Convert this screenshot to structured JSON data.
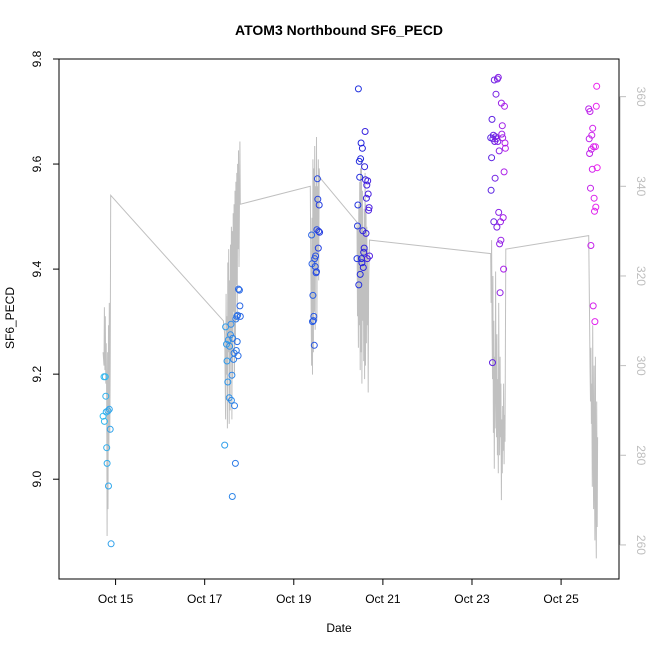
{
  "chart_data": {
    "type": "scatter",
    "title": "ATOM3 Northbound SF6_PECD",
    "xlabel": "Date",
    "ylabel": "SF6_PECD",
    "x_ticks": [
      {
        "day": 15,
        "label": "Oct 15"
      },
      {
        "day": 17,
        "label": "Oct 17"
      },
      {
        "day": 19,
        "label": "Oct 19"
      },
      {
        "day": 21,
        "label": "Oct 21"
      },
      {
        "day": 23,
        "label": "Oct 23"
      },
      {
        "day": 25,
        "label": "Oct 25"
      }
    ],
    "xlim": [
      13.73,
      26.3
    ],
    "ylim": [
      8.81,
      9.8
    ],
    "y_ticks": [
      "9.0",
      "9.2",
      "9.4",
      "9.6",
      "9.8"
    ],
    "y2lim": [
      252.4,
      368.4
    ],
    "y2_ticks": [
      "260",
      "280",
      "300",
      "320",
      "340",
      "360"
    ],
    "y2_color": "#BEBEBE",
    "line_color": "#C0C0C0",
    "point_color_start": "#33BBEE",
    "point_color_mid": "#2222DD",
    "point_color_end": "#EE22EE",
    "points": [
      [
        14.72,
        9.12
      ],
      [
        14.74,
        9.195
      ],
      [
        14.75,
        9.11
      ],
      [
        14.77,
        9.195
      ],
      [
        14.78,
        9.158
      ],
      [
        14.79,
        9.128
      ],
      [
        14.8,
        9.06
      ],
      [
        14.81,
        9.03
      ],
      [
        14.83,
        9.13
      ],
      [
        14.84,
        8.987
      ],
      [
        14.86,
        9.133
      ],
      [
        14.88,
        9.095
      ],
      [
        14.9,
        8.877
      ],
      [
        17.45,
        9.065
      ],
      [
        17.47,
        9.29
      ],
      [
        17.49,
        9.257
      ],
      [
        17.5,
        9.225
      ],
      [
        17.52,
        9.185
      ],
      [
        17.53,
        9.265
      ],
      [
        17.55,
        9.155
      ],
      [
        17.56,
        9.253
      ],
      [
        17.58,
        9.275
      ],
      [
        17.59,
        9.295
      ],
      [
        17.6,
        9.15
      ],
      [
        17.61,
        9.198
      ],
      [
        17.62,
        8.967
      ],
      [
        17.63,
        9.268
      ],
      [
        17.65,
        9.228
      ],
      [
        17.66,
        9.24
      ],
      [
        17.67,
        9.14
      ],
      [
        17.69,
        9.03
      ],
      [
        17.7,
        9.305
      ],
      [
        17.71,
        9.245
      ],
      [
        17.72,
        9.31
      ],
      [
        17.73,
        9.262
      ],
      [
        17.74,
        9.312
      ],
      [
        17.75,
        9.235
      ],
      [
        17.76,
        9.362
      ],
      [
        17.78,
        9.36
      ],
      [
        17.79,
        9.33
      ],
      [
        17.8,
        9.31
      ],
      [
        19.4,
        9.465
      ],
      [
        19.41,
        9.41
      ],
      [
        19.42,
        9.3
      ],
      [
        19.43,
        9.35
      ],
      [
        19.44,
        9.302
      ],
      [
        19.45,
        9.31
      ],
      [
        19.46,
        9.255
      ],
      [
        19.47,
        9.42
      ],
      [
        19.48,
        9.405
      ],
      [
        19.49,
        9.425
      ],
      [
        19.5,
        9.393
      ],
      [
        19.51,
        9.395
      ],
      [
        19.52,
        9.475
      ],
      [
        19.53,
        9.572
      ],
      [
        19.54,
        9.533
      ],
      [
        19.55,
        9.44
      ],
      [
        19.56,
        9.472
      ],
      [
        19.57,
        9.522
      ],
      [
        19.58,
        9.47
      ],
      [
        20.42,
        9.42
      ],
      [
        20.43,
        9.482
      ],
      [
        20.44,
        9.522
      ],
      [
        20.45,
        9.743
      ],
      [
        20.46,
        9.37
      ],
      [
        20.47,
        9.605
      ],
      [
        20.48,
        9.575
      ],
      [
        20.49,
        9.39
      ],
      [
        20.5,
        9.61
      ],
      [
        20.51,
        9.64
      ],
      [
        20.52,
        9.42
      ],
      [
        20.53,
        9.412
      ],
      [
        20.54,
        9.63
      ],
      [
        20.55,
        9.473
      ],
      [
        20.56,
        9.403
      ],
      [
        20.57,
        9.432
      ],
      [
        20.58,
        9.44
      ],
      [
        20.59,
        9.595
      ],
      [
        20.6,
        9.662
      ],
      [
        20.61,
        9.57
      ],
      [
        20.62,
        9.468
      ],
      [
        20.63,
        9.535
      ],
      [
        20.64,
        9.56
      ],
      [
        20.65,
        9.42
      ],
      [
        20.66,
        9.568
      ],
      [
        20.67,
        9.543
      ],
      [
        20.68,
        9.512
      ],
      [
        20.69,
        9.517
      ],
      [
        20.7,
        9.425
      ],
      [
        23.42,
        9.65
      ],
      [
        23.43,
        9.55
      ],
      [
        23.44,
        9.612
      ],
      [
        23.45,
        9.685
      ],
      [
        23.46,
        9.222
      ],
      [
        23.47,
        9.648
      ],
      [
        23.48,
        9.655
      ],
      [
        23.49,
        9.49
      ],
      [
        23.5,
        9.76
      ],
      [
        23.51,
        9.643
      ],
      [
        23.52,
        9.573
      ],
      [
        23.53,
        9.652
      ],
      [
        23.54,
        9.733
      ],
      [
        23.55,
        9.648
      ],
      [
        23.56,
        9.48
      ],
      [
        23.57,
        9.762
      ],
      [
        23.58,
        9.643
      ],
      [
        23.59,
        9.765
      ],
      [
        23.6,
        9.508
      ],
      [
        23.61,
        9.625
      ],
      [
        23.62,
        9.448
      ],
      [
        23.63,
        9.355
      ],
      [
        23.64,
        9.49
      ],
      [
        23.65,
        9.455
      ],
      [
        23.66,
        9.716
      ],
      [
        23.67,
        9.657
      ],
      [
        23.68,
        9.673
      ],
      [
        23.69,
        9.65
      ],
      [
        23.7,
        9.498
      ],
      [
        23.71,
        9.4
      ],
      [
        23.72,
        9.585
      ],
      [
        23.73,
        9.71
      ],
      [
        23.74,
        9.64
      ],
      [
        23.75,
        9.63
      ],
      [
        25.62,
        9.705
      ],
      [
        25.63,
        9.648
      ],
      [
        25.64,
        9.62
      ],
      [
        25.65,
        9.7
      ],
      [
        25.66,
        9.554
      ],
      [
        25.67,
        9.445
      ],
      [
        25.68,
        9.628
      ],
      [
        25.69,
        9.655
      ],
      [
        25.7,
        9.59
      ],
      [
        25.71,
        9.668
      ],
      [
        25.72,
        9.33
      ],
      [
        25.73,
        9.633
      ],
      [
        25.74,
        9.535
      ],
      [
        25.75,
        9.51
      ],
      [
        25.76,
        9.3
      ],
      [
        25.77,
        9.633
      ],
      [
        25.78,
        9.518
      ],
      [
        25.79,
        9.71
      ],
      [
        25.8,
        9.748
      ],
      [
        25.81,
        9.593
      ]
    ],
    "line": [
      [
        14.72,
        303
      ],
      [
        14.74,
        300
      ],
      [
        14.75,
        313
      ],
      [
        14.76,
        299
      ],
      [
        14.77,
        311
      ],
      [
        14.78,
        296
      ],
      [
        14.79,
        305
      ],
      [
        14.8,
        292
      ],
      [
        14.81,
        262
      ],
      [
        14.82,
        303
      ],
      [
        14.83,
        268
      ],
      [
        14.84,
        309
      ],
      [
        14.85,
        281
      ],
      [
        14.86,
        314
      ],
      [
        14.87,
        285
      ],
      [
        14.88,
        300
      ],
      [
        14.89,
        338
      ],
      [
        17.42,
        310
      ],
      [
        17.45,
        307
      ],
      [
        17.47,
        288
      ],
      [
        17.48,
        316
      ],
      [
        17.49,
        298
      ],
      [
        17.5,
        311
      ],
      [
        17.51,
        286
      ],
      [
        17.52,
        323
      ],
      [
        17.53,
        303
      ],
      [
        17.54,
        326
      ],
      [
        17.55,
        287
      ],
      [
        17.56,
        319
      ],
      [
        17.57,
        290
      ],
      [
        17.58,
        327
      ],
      [
        17.59,
        302
      ],
      [
        17.6,
        331
      ],
      [
        17.61,
        288
      ],
      [
        17.62,
        330
      ],
      [
        17.63,
        297
      ],
      [
        17.64,
        334
      ],
      [
        17.65,
        312
      ],
      [
        17.66,
        336
      ],
      [
        17.67,
        298
      ],
      [
        17.68,
        339
      ],
      [
        17.69,
        305
      ],
      [
        17.7,
        341
      ],
      [
        17.71,
        318
      ],
      [
        17.72,
        343
      ],
      [
        17.73,
        310
      ],
      [
        17.74,
        345
      ],
      [
        17.75,
        326
      ],
      [
        17.76,
        348
      ],
      [
        17.77,
        322
      ],
      [
        17.79,
        350
      ],
      [
        17.8,
        336
      ],
      [
        19.37,
        340
      ],
      [
        19.39,
        310
      ],
      [
        19.4,
        300
      ],
      [
        19.41,
        333
      ],
      [
        19.42,
        298
      ],
      [
        19.43,
        346
      ],
      [
        19.44,
        303
      ],
      [
        19.45,
        344
      ],
      [
        19.46,
        312
      ],
      [
        19.47,
        349
      ],
      [
        19.48,
        308
      ],
      [
        19.49,
        340
      ],
      [
        19.5,
        320
      ],
      [
        19.51,
        351
      ],
      [
        19.52,
        310
      ],
      [
        19.53,
        340
      ],
      [
        19.54,
        325
      ],
      [
        19.55,
        346
      ],
      [
        19.56,
        319
      ],
      [
        19.57,
        344
      ],
      [
        19.58,
        342
      ],
      [
        20.42,
        332
      ],
      [
        20.43,
        311
      ],
      [
        20.44,
        331
      ],
      [
        20.45,
        304
      ],
      [
        20.46,
        336
      ],
      [
        20.47,
        309
      ],
      [
        20.48,
        341
      ],
      [
        20.49,
        299
      ],
      [
        20.5,
        344
      ],
      [
        20.51,
        303
      ],
      [
        20.52,
        346
      ],
      [
        20.53,
        296
      ],
      [
        20.54,
        339
      ],
      [
        20.55,
        310
      ],
      [
        20.56,
        330
      ],
      [
        20.57,
        301
      ],
      [
        20.58,
        335
      ],
      [
        20.59,
        297
      ],
      [
        20.6,
        343
      ],
      [
        20.61,
        300
      ],
      [
        20.62,
        336
      ],
      [
        20.63,
        305
      ],
      [
        20.64,
        331
      ],
      [
        20.65,
        309
      ],
      [
        20.66,
        326
      ],
      [
        20.67,
        294
      ],
      [
        20.68,
        318
      ],
      [
        20.69,
        323
      ],
      [
        20.7,
        328
      ],
      [
        23.42,
        325
      ],
      [
        23.43,
        314
      ],
      [
        23.44,
        328
      ],
      [
        23.45,
        310
      ],
      [
        23.46,
        297
      ],
      [
        23.47,
        320
      ],
      [
        23.48,
        285
      ],
      [
        23.49,
        310
      ],
      [
        23.5,
        277
      ],
      [
        23.51,
        302
      ],
      [
        23.52,
        286
      ],
      [
        23.53,
        321
      ],
      [
        23.54,
        296
      ],
      [
        23.55,
        284
      ],
      [
        23.56,
        307
      ],
      [
        23.57,
        280
      ],
      [
        23.58,
        297
      ],
      [
        23.59,
        276
      ],
      [
        23.6,
        314
      ],
      [
        23.61,
        292
      ],
      [
        23.62,
        280
      ],
      [
        23.63,
        302
      ],
      [
        23.64,
        284
      ],
      [
        23.65,
        296
      ],
      [
        23.66,
        270
      ],
      [
        23.67,
        288
      ],
      [
        23.68,
        276
      ],
      [
        23.69,
        291
      ],
      [
        23.7,
        281
      ],
      [
        23.71,
        296
      ],
      [
        23.72,
        278
      ],
      [
        23.73,
        289
      ],
      [
        23.74,
        283
      ],
      [
        23.76,
        326
      ],
      [
        25.62,
        329
      ],
      [
        25.64,
        310
      ],
      [
        25.65,
        300
      ],
      [
        25.66,
        292
      ],
      [
        25.67,
        304
      ],
      [
        25.68,
        287
      ],
      [
        25.69,
        296
      ],
      [
        25.7,
        273
      ],
      [
        25.71,
        309
      ],
      [
        25.72,
        282
      ],
      [
        25.73,
        268
      ],
      [
        25.74,
        300
      ],
      [
        25.75,
        275
      ],
      [
        25.76,
        261
      ],
      [
        25.77,
        302
      ],
      [
        25.78,
        270
      ],
      [
        25.79,
        257
      ],
      [
        25.8,
        292
      ],
      [
        25.81,
        264
      ],
      [
        25.82,
        284
      ]
    ]
  }
}
